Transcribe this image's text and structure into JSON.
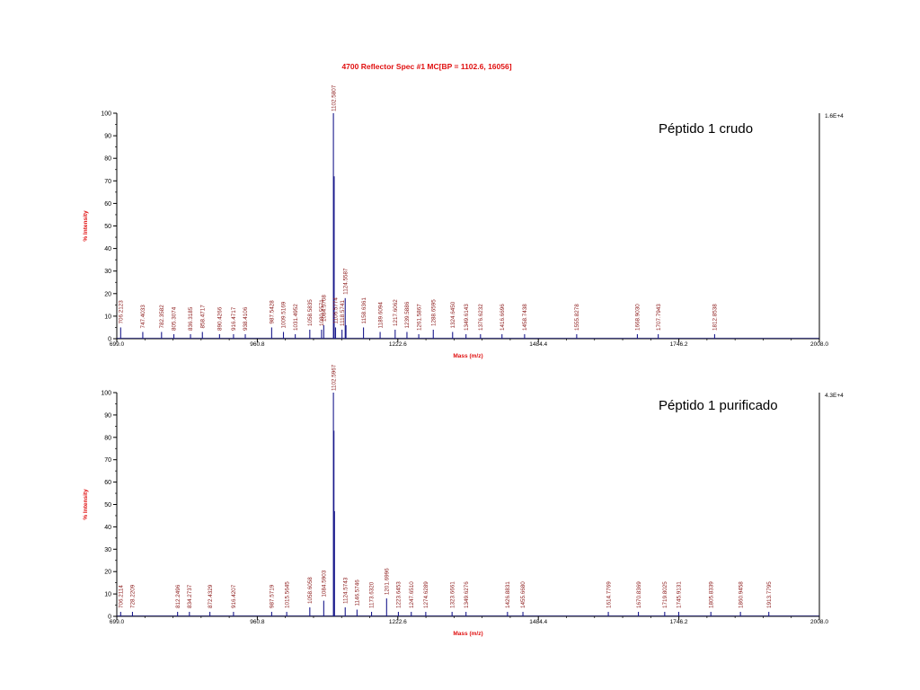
{
  "title": "4700 Reflector Spec #1 MC[BP = 1102.6, 16056]",
  "colors": {
    "title": "#e01010",
    "peak": "#1a1a8c",
    "label": "#8b1a1a",
    "axis": "#000000"
  },
  "chart_data": [
    {
      "type": "line",
      "annotation": "Péptido 1 crudo",
      "xlabel": "Mass (m/z)",
      "ylabel": "% Intensity",
      "xlim": [
        699.0,
        2008.0
      ],
      "ylim": [
        0,
        100
      ],
      "x_ticks": [
        "699.0",
        "960.8",
        "1222.6",
        "1484.4",
        "1746.2",
        "2008.0"
      ],
      "y_ticks": [
        "0",
        "10",
        "20",
        "30",
        "40",
        "50",
        "60",
        "70",
        "80",
        "90",
        "100"
      ],
      "max_intensity": "1.6E+4",
      "peaks": [
        {
          "x": 706.2123,
          "y": 5,
          "label": "706.2123"
        },
        {
          "x": 747.4033,
          "y": 3,
          "label": "747.4033"
        },
        {
          "x": 782.3582,
          "y": 3,
          "label": "782.3582"
        },
        {
          "x": 805.3074,
          "y": 2,
          "label": "805.3074"
        },
        {
          "x": 836.3185,
          "y": 2,
          "label": "836.3185"
        },
        {
          "x": 858.4717,
          "y": 3,
          "label": "858.4717"
        },
        {
          "x": 890.4266,
          "y": 2,
          "label": "890.4266"
        },
        {
          "x": 916.4717,
          "y": 2,
          "label": "916.4717"
        },
        {
          "x": 938.4106,
          "y": 2,
          "label": "938.4106"
        },
        {
          "x": 987.5428,
          "y": 5,
          "label": "987.5428"
        },
        {
          "x": 1009.5169,
          "y": 3,
          "label": "1009.5169"
        },
        {
          "x": 1031.4952,
          "y": 2,
          "label": "1031.4952"
        },
        {
          "x": 1058.5835,
          "y": 4,
          "label": "1058.5835"
        },
        {
          "x": 1080.5571,
          "y": 4,
          "label": "1080.5571"
        },
        {
          "x": 1084.5708,
          "y": 6,
          "label": "1084.5708"
        },
        {
          "x": 1102.5807,
          "y": 100,
          "label": "1102.5807"
        },
        {
          "x": 1104.0,
          "y": 72,
          "label": ""
        },
        {
          "x": 1106.5774,
          "y": 5,
          "label": "1106.5774"
        },
        {
          "x": 1118.5741,
          "y": 4,
          "label": "1118.5741"
        },
        {
          "x": 1124.5587,
          "y": 18,
          "label": "1124.5587"
        },
        {
          "x": 1126.0,
          "y": 6,
          "label": ""
        },
        {
          "x": 1158.6361,
          "y": 5,
          "label": "1158.6361"
        },
        {
          "x": 1189.6094,
          "y": 3,
          "label": "1189.6094"
        },
        {
          "x": 1217.6062,
          "y": 4,
          "label": "1217.6062"
        },
        {
          "x": 1239.5886,
          "y": 3,
          "label": "1239.5886"
        },
        {
          "x": 1261.5867,
          "y": 2,
          "label": "1261.5867"
        },
        {
          "x": 1288.6595,
          "y": 4,
          "label": "1288.6595"
        },
        {
          "x": 1324.645,
          "y": 3,
          "label": "1324.6450"
        },
        {
          "x": 1349.6143,
          "y": 2,
          "label": "1349.6143"
        },
        {
          "x": 1376.6232,
          "y": 2,
          "label": "1376.6232"
        },
        {
          "x": 1416.6696,
          "y": 2,
          "label": "1416.6696"
        },
        {
          "x": 1458.7438,
          "y": 2,
          "label": "1458.7438"
        },
        {
          "x": 1555.8278,
          "y": 2,
          "label": "1555.8278"
        },
        {
          "x": 1668.903,
          "y": 2,
          "label": "1668.9030"
        },
        {
          "x": 1707.7943,
          "y": 2,
          "label": "1707.7943"
        },
        {
          "x": 1812.8538,
          "y": 2,
          "label": "1812.8538"
        }
      ]
    },
    {
      "type": "line",
      "annotation": "Péptido 1 purificado",
      "xlabel": "Mass (m/z)",
      "ylabel": "% Intensity",
      "xlim": [
        699.0,
        2008.0
      ],
      "ylim": [
        0,
        100
      ],
      "x_ticks": [
        "699.0",
        "960.8",
        "1222.6",
        "1484.4",
        "1746.2",
        "2008.0"
      ],
      "y_ticks": [
        "0",
        "10",
        "20",
        "30",
        "40",
        "50",
        "60",
        "70",
        "80",
        "90",
        "100"
      ],
      "max_intensity": "4.3E+4",
      "peaks": [
        {
          "x": 706.2114,
          "y": 2,
          "label": "706.2114"
        },
        {
          "x": 728.2209,
          "y": 2,
          "label": "728.2209"
        },
        {
          "x": 812.2496,
          "y": 2,
          "label": "812.2496"
        },
        {
          "x": 834.2737,
          "y": 2,
          "label": "834.2737"
        },
        {
          "x": 872.4329,
          "y": 2,
          "label": "872.4329"
        },
        {
          "x": 916.4207,
          "y": 2,
          "label": "916.4207"
        },
        {
          "x": 987.5719,
          "y": 2,
          "label": "987.5719"
        },
        {
          "x": 1015.5645,
          "y": 2,
          "label": "1015.5645"
        },
        {
          "x": 1058.6058,
          "y": 4,
          "label": "1058.6058"
        },
        {
          "x": 1084.5903,
          "y": 7,
          "label": "1084.5903"
        },
        {
          "x": 1102.5967,
          "y": 100,
          "label": "1102.5967"
        },
        {
          "x": 1103.6,
          "y": 83,
          "label": ""
        },
        {
          "x": 1104.6,
          "y": 47,
          "label": ""
        },
        {
          "x": 1124.5743,
          "y": 4,
          "label": "1124.5743"
        },
        {
          "x": 1146.5746,
          "y": 3,
          "label": "1146.5746"
        },
        {
          "x": 1173.632,
          "y": 2,
          "label": "1173.6320"
        },
        {
          "x": 1201.6996,
          "y": 8,
          "label": "1201.6996"
        },
        {
          "x": 1223.6453,
          "y": 2,
          "label": "1223.6453"
        },
        {
          "x": 1247.651,
          "y": 2,
          "label": "1247.6510"
        },
        {
          "x": 1274.6289,
          "y": 2,
          "label": "1274.6289"
        },
        {
          "x": 1323.6661,
          "y": 2,
          "label": "1323.6661"
        },
        {
          "x": 1349.6276,
          "y": 2,
          "label": "1349.6276"
        },
        {
          "x": 1426.8831,
          "y": 2,
          "label": "1426.8831"
        },
        {
          "x": 1455.668,
          "y": 2,
          "label": "1455.6680"
        },
        {
          "x": 1614.7769,
          "y": 2,
          "label": "1614.7769"
        },
        {
          "x": 1670.8369,
          "y": 2,
          "label": "1670.8369"
        },
        {
          "x": 1719.8025,
          "y": 2,
          "label": "1719.8025"
        },
        {
          "x": 1745.9131,
          "y": 2,
          "label": "1745.9131"
        },
        {
          "x": 1805.8339,
          "y": 2,
          "label": "1805.8339"
        },
        {
          "x": 1860.9458,
          "y": 2,
          "label": "1860.9458"
        },
        {
          "x": 1913.7795,
          "y": 2,
          "label": "1913.7795"
        }
      ]
    }
  ]
}
